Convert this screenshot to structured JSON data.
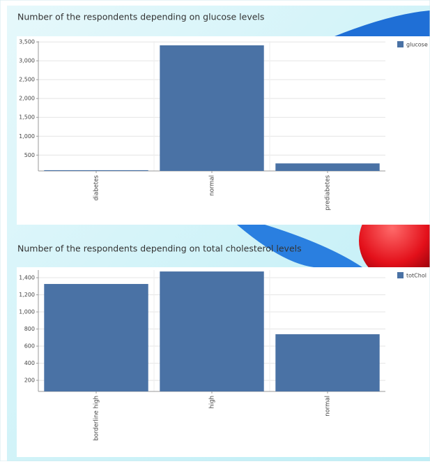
{
  "chart_data": [
    {
      "type": "bar",
      "title": "Number of the respondents depending on glucose levels",
      "categories": [
        "diabetes",
        "normal",
        "prediabetes"
      ],
      "series": [
        {
          "name": "glucose",
          "color": "#4a72a5",
          "values": [
            100,
            3410,
            280
          ]
        }
      ],
      "ylim": [
        80,
        3520
      ],
      "yticks": [
        {
          "value": 500,
          "label": "500"
        },
        {
          "value": 1000,
          "label": "1,000"
        },
        {
          "value": 1500,
          "label": "1,500"
        },
        {
          "value": 2000,
          "label": "2,000"
        },
        {
          "value": 2500,
          "label": "2,500"
        },
        {
          "value": 3000,
          "label": "3,000"
        },
        {
          "value": 3500,
          "label": "3,500"
        }
      ],
      "grid": true
    },
    {
      "type": "bar",
      "title": "Number of the respondents depending on total cholesterol levels",
      "categories": [
        "borderline high",
        "high",
        "normal"
      ],
      "series": [
        {
          "name": "totChol",
          "color": "#4a72a5",
          "values": [
            1327,
            1473,
            739
          ]
        }
      ],
      "ylim": [
        70,
        1490
      ],
      "yticks": [
        {
          "value": 200,
          "label": "200"
        },
        {
          "value": 400,
          "label": "400"
        },
        {
          "value": 600,
          "label": "600"
        },
        {
          "value": 800,
          "label": "800"
        },
        {
          "value": 1000,
          "label": "1,000"
        },
        {
          "value": 1200,
          "label": "1,200"
        },
        {
          "value": 1400,
          "label": "1,400"
        }
      ],
      "grid": true
    }
  ]
}
